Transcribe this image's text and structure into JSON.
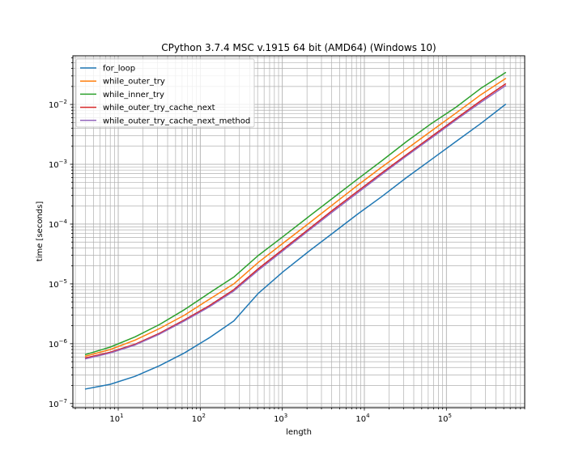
{
  "chart_data": {
    "type": "line",
    "title": "CPython 3.7.4 MSC v.1915 64 bit (AMD64) (Windows 10)",
    "xlabel": "length",
    "ylabel": "time [seconds]",
    "xscale": "log",
    "yscale": "log",
    "xlim": [
      2.8,
      900000
    ],
    "ylim": [
      8.5e-08,
      0.065
    ],
    "grid": "both-major-and-minor",
    "legend_position": "upper-left",
    "x_ticks": [
      {
        "value": 10,
        "base": "10",
        "exp": "1"
      },
      {
        "value": 100,
        "base": "10",
        "exp": "2"
      },
      {
        "value": 1000,
        "base": "10",
        "exp": "3"
      },
      {
        "value": 10000,
        "base": "10",
        "exp": "4"
      },
      {
        "value": 100000,
        "base": "10",
        "exp": "5"
      }
    ],
    "y_ticks": [
      {
        "value": 1e-07,
        "base": "10",
        "exp": "−7"
      },
      {
        "value": 1e-06,
        "base": "10",
        "exp": "−6"
      },
      {
        "value": 1e-05,
        "base": "10",
        "exp": "−5"
      },
      {
        "value": 0.0001,
        "base": "10",
        "exp": "−4"
      },
      {
        "value": 0.001,
        "base": "10",
        "exp": "−3"
      },
      {
        "value": 0.01,
        "base": "10",
        "exp": "−2"
      }
    ],
    "x": [
      4,
      8,
      16,
      32,
      64,
      128,
      256,
      512,
      1024,
      2048,
      4096,
      8192,
      16384,
      32768,
      65536,
      131072,
      262144,
      524288
    ],
    "series": [
      {
        "name": "for_loop",
        "color": "#1f77b4",
        "values": [
          1.75e-07,
          2.1e-07,
          2.85e-07,
          4.3e-07,
          7e-07,
          1.25e-06,
          2.4e-06,
          7e-06,
          1.6e-05,
          3.4e-05,
          7e-05,
          0.000145,
          0.00029,
          0.0006,
          0.0012,
          0.0024,
          0.0048,
          0.01
        ]
      },
      {
        "name": "while_outer_try",
        "color": "#ff7f0e",
        "values": [
          6.2e-07,
          8e-07,
          1.15e-06,
          1.8e-06,
          3e-06,
          5.5e-06,
          1e-05,
          2.3e-05,
          4.8e-05,
          0.0001,
          0.00021,
          0.00044,
          0.0009,
          0.0018,
          0.0036,
          0.0072,
          0.0145,
          0.027
        ]
      },
      {
        "name": "while_inner_try",
        "color": "#2ca02c",
        "values": [
          6.6e-07,
          8.8e-07,
          1.3e-06,
          2.1e-06,
          3.7e-06,
          7e-06,
          1.3e-05,
          3e-05,
          6.2e-05,
          0.00013,
          0.00027,
          0.00056,
          0.00115,
          0.0024,
          0.0048,
          0.009,
          0.0185,
          0.034
        ]
      },
      {
        "name": "while_outer_try_cache_next",
        "color": "#d62728",
        "values": [
          5.8e-07,
          7.2e-07,
          9.8e-07,
          1.5e-06,
          2.5e-06,
          4.3e-06,
          8e-06,
          1.8e-05,
          3.8e-05,
          8e-05,
          0.00017,
          0.00035,
          0.00072,
          0.00145,
          0.0029,
          0.0058,
          0.0115,
          0.022
        ]
      },
      {
        "name": "while_outer_try_cache_next_method",
        "color": "#9467bd",
        "values": [
          5.6e-07,
          7e-07,
          9.5e-07,
          1.45e-06,
          2.4e-06,
          4.1e-06,
          7.6e-06,
          1.7e-05,
          3.6e-05,
          7.6e-05,
          0.00016,
          0.00033,
          0.00068,
          0.00138,
          0.00275,
          0.0055,
          0.0108,
          0.0205
        ]
      }
    ]
  }
}
